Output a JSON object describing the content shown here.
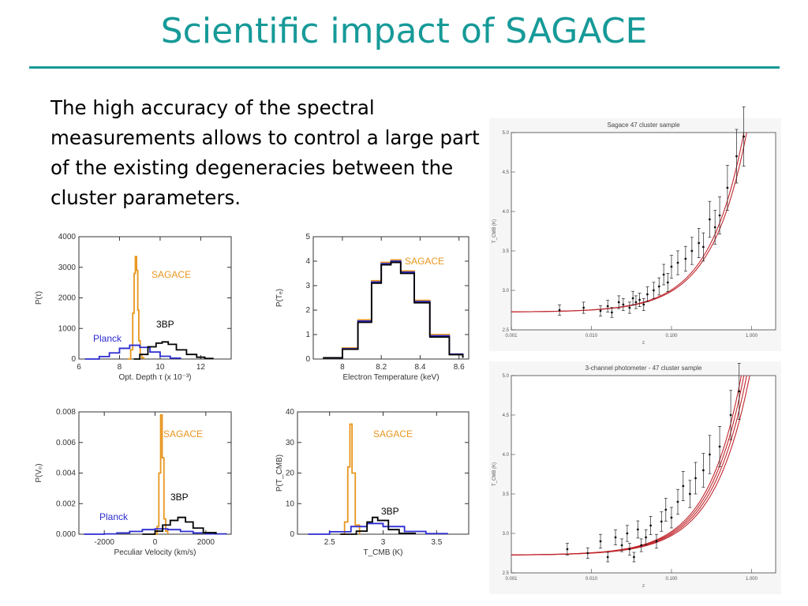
{
  "slide": {
    "title": "Scientific impact of SAGACE",
    "body": "The high accuracy of the spectral measurements allows to control a large part of the existing degeneracies between the cluster parameters."
  },
  "colors": {
    "accent": "#169a98",
    "sagace": "#e8961e",
    "planck": "#2b2bd0",
    "threebp": "#000000",
    "fit": "#c0262c"
  },
  "chart_data": [
    {
      "id": "tau",
      "type": "line",
      "xlabel": "Opt. Depth τ (x 10⁻³)",
      "ylabel": "P(τ)",
      "xlim": [
        6,
        13.5
      ],
      "ylim": [
        0,
        4000
      ],
      "xticks": [
        6,
        8,
        10,
        12
      ],
      "yticks": [
        0,
        1000,
        2000,
        3000,
        4000
      ],
      "series": [
        {
          "name": "SAGACE",
          "color": "#e8961e",
          "x": [
            8.4,
            8.55,
            8.65,
            8.72,
            8.78,
            8.84,
            8.9,
            8.95,
            9.02,
            9.1,
            9.2
          ],
          "y": [
            0,
            300,
            1500,
            2800,
            3350,
            2900,
            1600,
            600,
            150,
            40,
            0
          ]
        },
        {
          "name": "Planck",
          "color": "#2b2bd0",
          "x": [
            6.3,
            7.0,
            7.5,
            8.0,
            8.5,
            9.0,
            9.5,
            10.0,
            10.5,
            11.0
          ],
          "y": [
            0,
            80,
            200,
            350,
            450,
            380,
            230,
            90,
            30,
            0
          ]
        },
        {
          "name": "3BP",
          "color": "#000000",
          "x": [
            8.7,
            9.0,
            9.4,
            9.8,
            10.1,
            10.4,
            10.8,
            11.3,
            11.8,
            12.2,
            12.6
          ],
          "y": [
            0,
            150,
            400,
            520,
            560,
            480,
            300,
            150,
            60,
            20,
            0
          ]
        }
      ]
    },
    {
      "id": "te",
      "type": "line",
      "xlabel": "Electron Temperature (keV)",
      "ylabel": "P(Tₑ)",
      "xlim": [
        7.85,
        8.65
      ],
      "ylim": [
        0,
        5
      ],
      "xticks": [
        8.0,
        8.2,
        8.4,
        8.6
      ],
      "yticks": [
        0,
        1,
        2,
        3,
        4,
        5
      ],
      "series": [
        {
          "name": "SAGACE",
          "color": "#e8961e",
          "x": [
            7.9,
            8.0,
            8.08,
            8.15,
            8.2,
            8.25,
            8.3,
            8.37,
            8.45,
            8.55,
            8.62
          ],
          "y": [
            0.05,
            0.45,
            1.6,
            3.2,
            3.95,
            4.05,
            3.6,
            2.4,
            1.0,
            0.2,
            0.05
          ]
        },
        {
          "name": "Planck",
          "color": "#2b2bd0",
          "x": [
            7.9,
            8.0,
            8.08,
            8.15,
            8.2,
            8.25,
            8.3,
            8.37,
            8.45,
            8.55,
            8.62
          ],
          "y": [
            0.05,
            0.42,
            1.55,
            3.15,
            3.9,
            4.0,
            3.55,
            2.35,
            0.95,
            0.2,
            0.05
          ]
        },
        {
          "name": "3BP",
          "color": "#000000",
          "x": [
            7.9,
            8.0,
            8.08,
            8.15,
            8.2,
            8.25,
            8.3,
            8.37,
            8.45,
            8.55,
            8.62
          ],
          "y": [
            0.05,
            0.4,
            1.5,
            3.1,
            3.85,
            3.95,
            3.5,
            2.3,
            0.9,
            0.18,
            0.05
          ]
        }
      ]
    },
    {
      "id": "vp",
      "type": "line",
      "xlabel": "Peculiar Velocity (km/s)",
      "ylabel": "P(Vₚ)",
      "xlim": [
        -3000,
        3000
      ],
      "ylim": [
        0,
        0.008
      ],
      "xticks": [
        -2000,
        0,
        2000
      ],
      "yticks": [
        0.0,
        0.002,
        0.004,
        0.006,
        0.008
      ],
      "tick_labels_y": [
        "0.000",
        "0.002",
        "0.004",
        "0.006",
        "0.008"
      ],
      "series": [
        {
          "name": "SAGACE",
          "color": "#e8961e",
          "x": [
            -50,
            80,
            150,
            220,
            280,
            350,
            420,
            500
          ],
          "y": [
            0,
            0.0005,
            0.004,
            0.0078,
            0.005,
            0.001,
            0.0002,
            0
          ]
        },
        {
          "name": "Planck",
          "color": "#2b2bd0",
          "x": [
            -2800,
            -2000,
            -1500,
            -1000,
            -500,
            0,
            500,
            1000,
            1500,
            2000,
            2800
          ],
          "y": [
            0,
            2e-05,
            8e-05,
            0.00018,
            0.0003,
            0.00035,
            0.0003,
            0.00018,
            8e-05,
            2e-05,
            0
          ]
        },
        {
          "name": "3BP",
          "color": "#000000",
          "x": [
            -500,
            0,
            300,
            600,
            900,
            1200,
            1500,
            1900,
            2400
          ],
          "y": [
            0,
            0.0002,
            0.0006,
            0.0009,
            0.0011,
            0.0008,
            0.0004,
            0.0001,
            0
          ]
        }
      ]
    },
    {
      "id": "tcmb",
      "type": "line",
      "xlabel": "T_CMB (K)",
      "ylabel": "P(T_CMB)",
      "xlim": [
        2.2,
        3.8
      ],
      "ylim": [
        0,
        40
      ],
      "xticks": [
        2.5,
        3.0,
        3.5
      ],
      "yticks": [
        0,
        10,
        20,
        30,
        40
      ],
      "series": [
        {
          "name": "SAGACE",
          "color": "#e8961e",
          "x": [
            2.6,
            2.64,
            2.67,
            2.69,
            2.71,
            2.74,
            2.78
          ],
          "y": [
            0,
            4,
            22,
            36,
            20,
            3,
            0
          ]
        },
        {
          "name": "Planck",
          "color": "#2b2bd0",
          "x": [
            2.3,
            2.5,
            2.7,
            2.85,
            3.0,
            3.2,
            3.4,
            3.6
          ],
          "y": [
            0,
            0.8,
            2.5,
            3.5,
            2.5,
            0.9,
            0.2,
            0
          ]
        },
        {
          "name": "3BP",
          "color": "#000000",
          "x": [
            2.6,
            2.75,
            2.85,
            2.9,
            2.95,
            3.05,
            3.15,
            3.3
          ],
          "y": [
            0,
            1,
            4,
            5.5,
            4.5,
            1.5,
            0.3,
            0
          ]
        }
      ]
    },
    {
      "id": "sagace-sample",
      "type": "scatter",
      "title": "Sagace 47 cluster sample",
      "xlabel": "z",
      "ylabel": "T_CMB (K)",
      "xscale": "log",
      "xlim": [
        0.001,
        2
      ],
      "ylim": [
        2.5,
        5.0
      ],
      "xticks": [
        0.001,
        0.01,
        0.1,
        1.0
      ],
      "tick_labels_x": [
        "0.001",
        "0.010",
        "0.100",
        "1.000"
      ],
      "yticks": [
        2.5,
        3.0,
        3.5,
        4.0,
        4.5,
        5.0
      ],
      "tick_labels_y": [
        "2.5",
        "3.0",
        "3.5",
        "4.0",
        "4.5",
        "5.0"
      ],
      "points": [
        [
          0.004,
          2.75
        ],
        [
          0.008,
          2.78
        ],
        [
          0.013,
          2.74
        ],
        [
          0.016,
          2.8
        ],
        [
          0.018,
          2.72
        ],
        [
          0.022,
          2.85
        ],
        [
          0.025,
          2.82
        ],
        [
          0.03,
          2.78
        ],
        [
          0.033,
          2.9
        ],
        [
          0.036,
          2.85
        ],
        [
          0.04,
          2.88
        ],
        [
          0.045,
          2.82
        ],
        [
          0.05,
          2.95
        ],
        [
          0.06,
          3.0
        ],
        [
          0.07,
          3.05
        ],
        [
          0.08,
          3.2
        ],
        [
          0.09,
          3.1
        ],
        [
          0.1,
          3.3
        ],
        [
          0.12,
          3.35
        ],
        [
          0.15,
          3.4
        ],
        [
          0.18,
          3.5
        ],
        [
          0.22,
          3.6
        ],
        [
          0.25,
          3.55
        ],
        [
          0.3,
          3.9
        ],
        [
          0.35,
          3.8
        ],
        [
          0.4,
          3.95
        ],
        [
          0.5,
          4.3
        ],
        [
          0.65,
          4.7
        ],
        [
          0.8,
          4.95
        ]
      ],
      "fit": "T0(1+z)"
    },
    {
      "id": "photometer-sample",
      "type": "scatter",
      "title": "3-channel photometer - 47 cluster sample",
      "xlabel": "z",
      "ylabel": "T_CMB (K)",
      "xscale": "log",
      "xlim": [
        0.001,
        2
      ],
      "ylim": [
        2.5,
        5.0
      ],
      "xticks": [
        0.001,
        0.01,
        0.1,
        1.0
      ],
      "tick_labels_x": [
        "0.001",
        "0.010",
        "0.100",
        "1.000"
      ],
      "yticks": [
        2.5,
        3.0,
        3.5,
        4.0,
        4.5,
        5.0
      ],
      "tick_labels_y": [
        "2.5",
        "3.0",
        "3.5",
        "4.0",
        "4.5",
        "5.0"
      ],
      "points": [
        [
          0.005,
          2.8
        ],
        [
          0.009,
          2.75
        ],
        [
          0.013,
          2.9
        ],
        [
          0.016,
          2.7
        ],
        [
          0.02,
          2.95
        ],
        [
          0.024,
          2.85
        ],
        [
          0.028,
          3.0
        ],
        [
          0.03,
          2.8
        ],
        [
          0.034,
          2.7
        ],
        [
          0.038,
          3.05
        ],
        [
          0.042,
          2.85
        ],
        [
          0.048,
          2.95
        ],
        [
          0.055,
          3.1
        ],
        [
          0.065,
          2.9
        ],
        [
          0.075,
          3.15
        ],
        [
          0.085,
          3.3
        ],
        [
          0.1,
          3.2
        ],
        [
          0.12,
          3.4
        ],
        [
          0.14,
          3.6
        ],
        [
          0.17,
          3.5
        ],
        [
          0.2,
          3.7
        ],
        [
          0.25,
          3.8
        ],
        [
          0.3,
          4.0
        ],
        [
          0.4,
          4.1
        ],
        [
          0.55,
          4.5
        ],
        [
          0.7,
          4.8
        ]
      ],
      "fit": "T0(1+z)^(1-a)"
    }
  ],
  "annotations": {
    "tau": {
      "sagace": "SAGACE",
      "planck": "Planck",
      "threebp": "3BP"
    },
    "te": {
      "sagace": "SAGACE"
    },
    "vp": {
      "sagace": "SAGACE",
      "planck": "Planck",
      "threebp": "3BP"
    },
    "tcmb": {
      "sagace": "SAGACE",
      "threebp": "3BP"
    }
  }
}
